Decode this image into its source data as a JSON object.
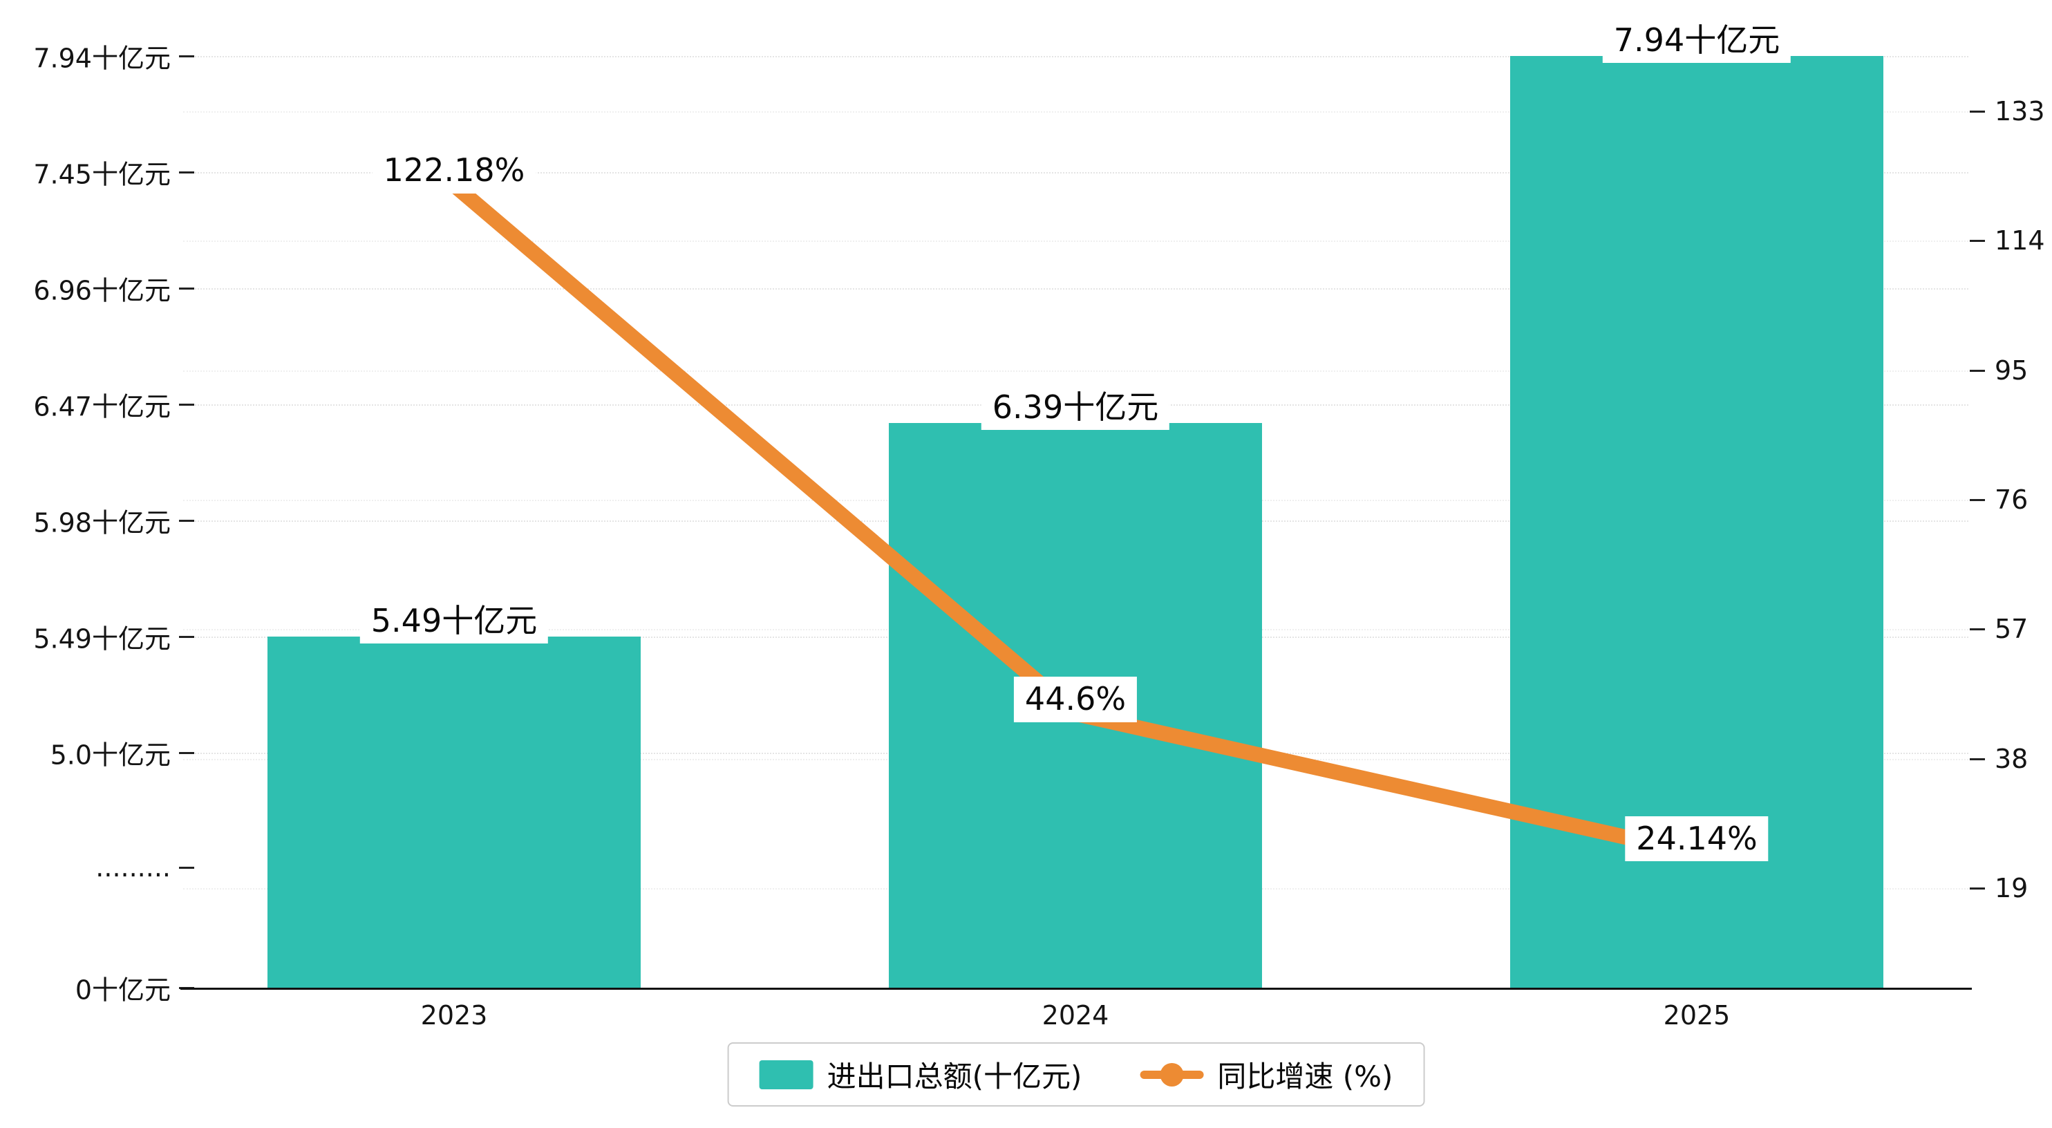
{
  "chart_data": {
    "type": "combo",
    "categories": [
      "2023",
      "2024",
      "2025"
    ],
    "series": [
      {
        "name": "进出口总额(十亿元)",
        "type": "bar",
        "axis": "left",
        "values": [
          5.49,
          6.39,
          7.94
        ],
        "data_labels": [
          "5.49十亿元",
          "6.39十亿元",
          "7.94十亿元"
        ],
        "color": "#2fbfb0"
      },
      {
        "name": "同比增速 (%)",
        "type": "line",
        "axis": "right",
        "values": [
          122.18,
          44.6,
          24.14
        ],
        "data_labels": [
          "122.18%",
          "44.6%",
          "24.14%"
        ],
        "color": "#ed8b33"
      }
    ],
    "left_axis": {
      "unit": "十亿元",
      "has_break": true,
      "tick_labels": [
        "7.94十亿元",
        "7.45十亿元",
        "6.96十亿元",
        "6.47十亿元",
        "5.98十亿元",
        "5.49十亿元",
        "5.0十亿元",
        ".........",
        "0十亿元"
      ]
    },
    "right_axis": {
      "tick_labels": [
        "133",
        "114",
        "95",
        "76",
        "57",
        "38",
        "19"
      ]
    },
    "x_axis": {
      "tick_labels": [
        "2023",
        "2024",
        "2025"
      ]
    },
    "legend": {
      "position": "bottom-center",
      "items": [
        {
          "label": "进出口总额(十亿元)",
          "marker": "bar-swatch",
          "color": "#2fbfb0"
        },
        {
          "label": "同比增速 (%)",
          "marker": "line-with-dot",
          "color": "#ed8b33"
        }
      ]
    },
    "grid": {
      "horizontal_dotted": true,
      "vertical": false
    }
  },
  "colors": {
    "bar": "#2fbfb0",
    "line": "#ed8b33",
    "axis": "#111111",
    "gridline": "#e4e4e4",
    "background": "#ffffff",
    "legend_border": "#cccccc"
  }
}
